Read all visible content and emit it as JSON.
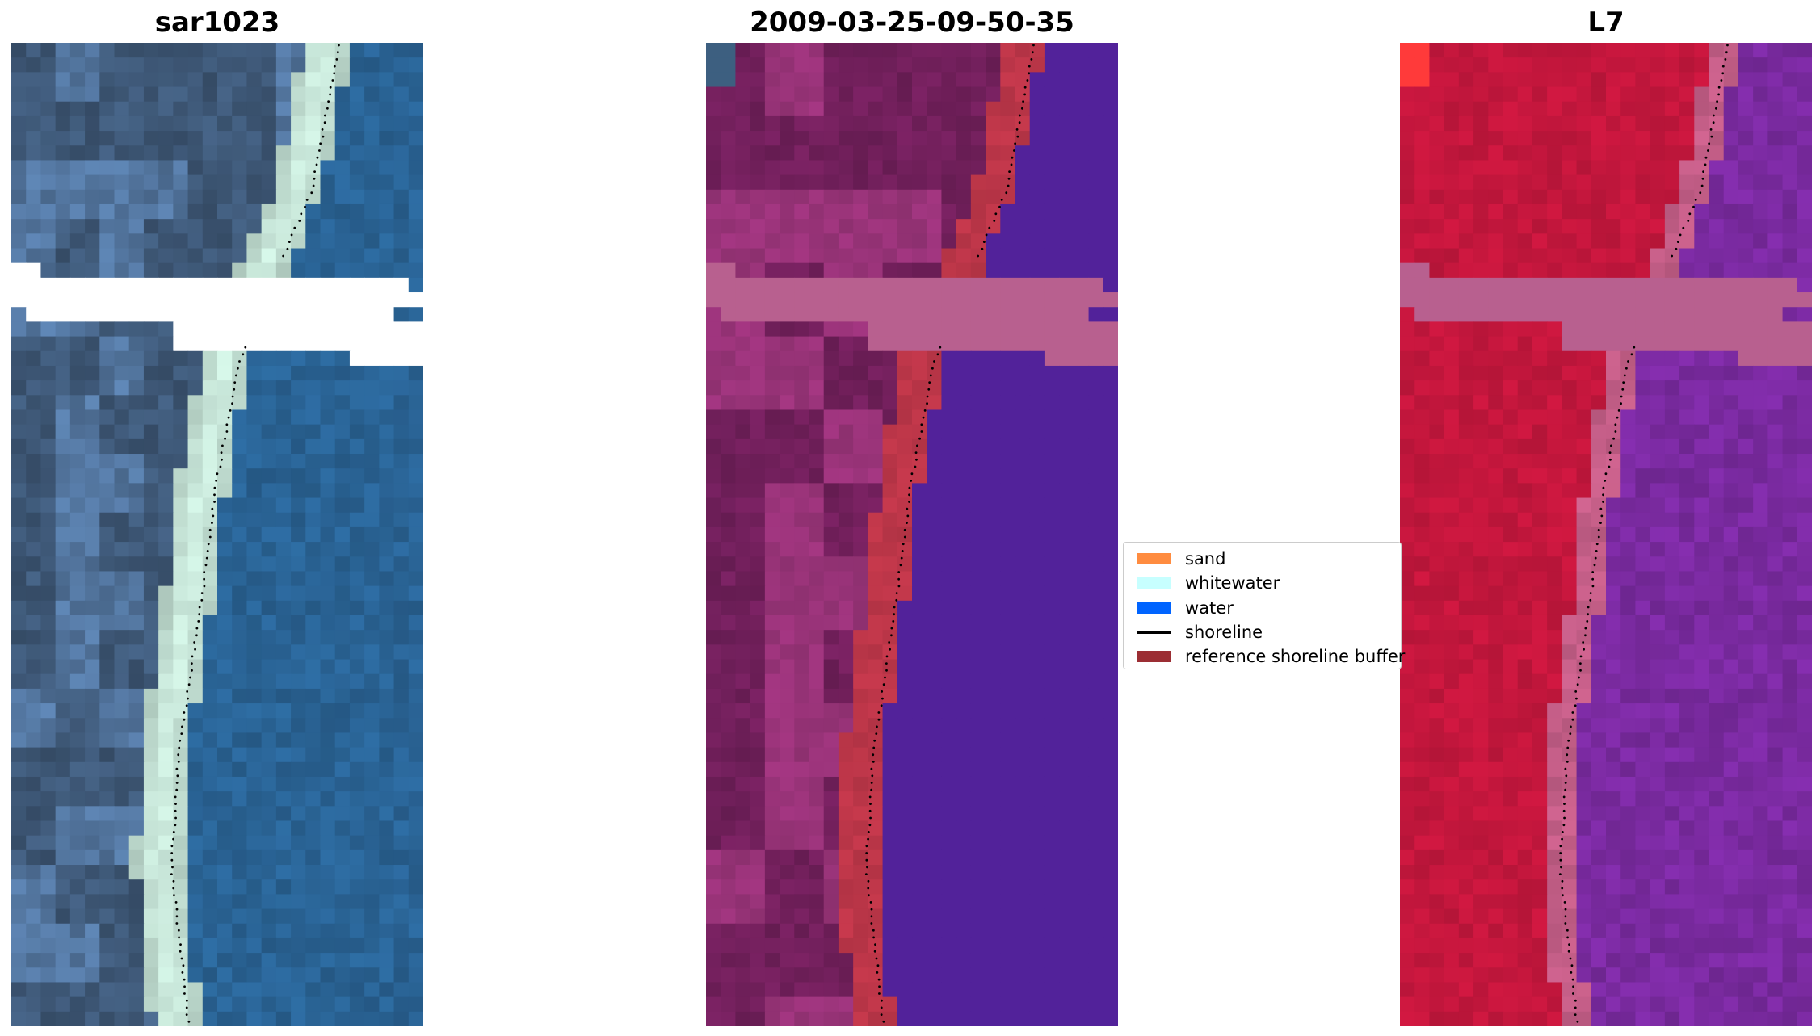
{
  "panels": [
    {
      "title": "sar1023",
      "style": "rgb"
    },
    {
      "title": "2009-03-25-09-50-35",
      "style": "classified"
    },
    {
      "title": "L7",
      "style": "falsecolor"
    }
  ],
  "legend": {
    "items": [
      {
        "label": "sand",
        "color": "#ff8c40",
        "kind": "patch"
      },
      {
        "label": "whitewater",
        "color": "#c7ffff",
        "kind": "patch"
      },
      {
        "label": "water",
        "color": "#0064ff",
        "kind": "patch"
      },
      {
        "label": "shoreline",
        "color": "#000000",
        "kind": "line"
      },
      {
        "label": "reference shoreline buffer",
        "color": "#9c2e34",
        "kind": "patch"
      }
    ]
  },
  "colors": {
    "rgb_land": "#3e5877",
    "rgb_water": "#2a6496",
    "class_land": "#701f5a",
    "class_water": "#52229a",
    "class_buffer": "#c0374a",
    "class_cloud": "#b8608f",
    "false_land": "#c8173e",
    "false_water": "#7a2aa0"
  }
}
